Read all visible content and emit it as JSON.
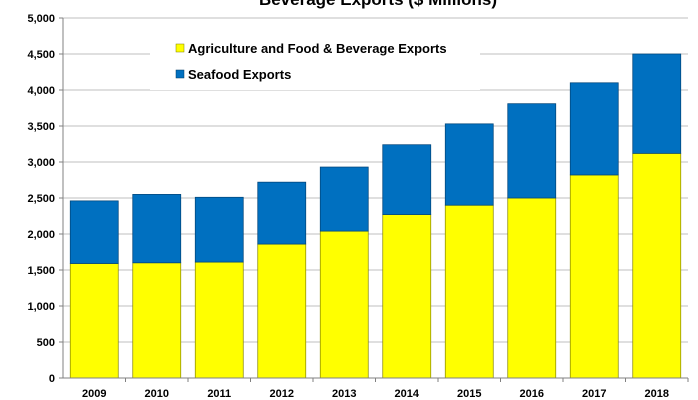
{
  "chart_data": {
    "type": "bar",
    "stacked": true,
    "title": "Beverage Exports ($ Millions)",
    "categories": [
      "2009",
      "2010",
      "2011",
      "2012",
      "2013",
      "2014",
      "2015",
      "2016",
      "2017",
      "2018"
    ],
    "series": [
      {
        "name": "Agriculture and Food & Beverage Exports",
        "color": "#ffff00",
        "values": [
          1590,
          1600,
          1610,
          1860,
          2040,
          2270,
          2400,
          2500,
          2820,
          3120
        ]
      },
      {
        "name": "Seafood Exports",
        "color": "#0070c0",
        "values": [
          870,
          950,
          900,
          860,
          890,
          970,
          1130,
          1310,
          1280,
          1380
        ]
      }
    ],
    "ylim": [
      0,
      5000
    ],
    "yticks": [
      "0",
      "500",
      "1,000",
      "1,500",
      "2,000",
      "2,500",
      "3,000",
      "3,500",
      "4,000",
      "4,500",
      "5,000"
    ],
    "grid": true,
    "legend_position": "top-left"
  }
}
